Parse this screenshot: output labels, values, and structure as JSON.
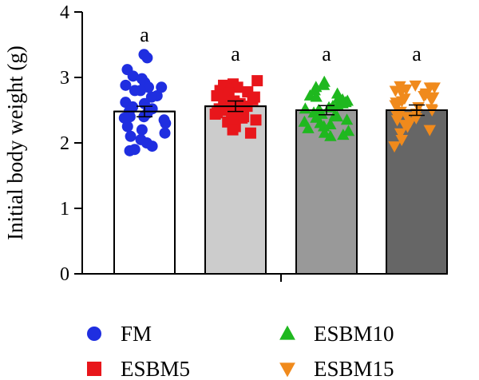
{
  "chart_data": {
    "type": "bar",
    "ylabel": "Initial body weight (g)",
    "ylim": [
      0,
      4
    ],
    "yticks": [
      0,
      1,
      2,
      3,
      4
    ],
    "categories": [
      "FM",
      "ESBM5",
      "ESBM10",
      "ESBM15"
    ],
    "values": [
      2.48,
      2.56,
      2.5,
      2.5
    ],
    "errors": [
      0.08,
      0.08,
      0.07,
      0.08
    ],
    "significance": [
      "a",
      "a",
      "a",
      "a"
    ],
    "bar_colors": [
      "#ffffff",
      "#cccccc",
      "#999999",
      "#666666"
    ],
    "legend_position": "bottom",
    "series": [
      {
        "name": "FM",
        "marker": "circle",
        "color": "#1f2ee0",
        "points": [
          3.35,
          3.3,
          3.12,
          3.02,
          2.98,
          2.92,
          2.88,
          2.85,
          2.85,
          2.8,
          2.8,
          2.72,
          2.7,
          2.62,
          2.6,
          2.55,
          2.52,
          2.48,
          2.45,
          2.4,
          2.4,
          2.38,
          2.35,
          2.3,
          2.25,
          2.2,
          2.15,
          2.1,
          2.05,
          2.0,
          1.95,
          1.9,
          1.88
        ]
      },
      {
        "name": "ESBM5",
        "marker": "square",
        "color": "#e8161b",
        "points": [
          2.95,
          2.9,
          2.88,
          2.85,
          2.82,
          2.8,
          2.78,
          2.76,
          2.74,
          2.72,
          2.7,
          2.68,
          2.66,
          2.64,
          2.62,
          2.6,
          2.58,
          2.56,
          2.54,
          2.52,
          2.5,
          2.48,
          2.46,
          2.44,
          2.42,
          2.4,
          2.38,
          2.35,
          2.32,
          2.28,
          2.25,
          2.2,
          2.15
        ]
      },
      {
        "name": "ESBM10",
        "marker": "triangle-up",
        "color": "#1fb81f",
        "points": [
          2.93,
          2.88,
          2.85,
          2.8,
          2.75,
          2.72,
          2.7,
          2.68,
          2.66,
          2.64,
          2.62,
          2.6,
          2.58,
          2.56,
          2.54,
          2.52,
          2.5,
          2.48,
          2.46,
          2.44,
          2.42,
          2.4,
          2.38,
          2.35,
          2.32,
          2.3,
          2.28,
          2.25,
          2.22,
          2.18,
          2.15,
          2.12,
          2.1
        ]
      },
      {
        "name": "ESBM15",
        "marker": "triangle-down",
        "color": "#f08a1c",
        "points": [
          2.88,
          2.87,
          2.85,
          2.85,
          2.82,
          2.8,
          2.78,
          2.76,
          2.74,
          2.72,
          2.7,
          2.68,
          2.66,
          2.64,
          2.62,
          2.6,
          2.58,
          2.55,
          2.52,
          2.5,
          2.48,
          2.45,
          2.42,
          2.4,
          2.38,
          2.35,
          2.32,
          2.28,
          2.25,
          2.2,
          2.15,
          2.05,
          1.95
        ]
      }
    ]
  }
}
